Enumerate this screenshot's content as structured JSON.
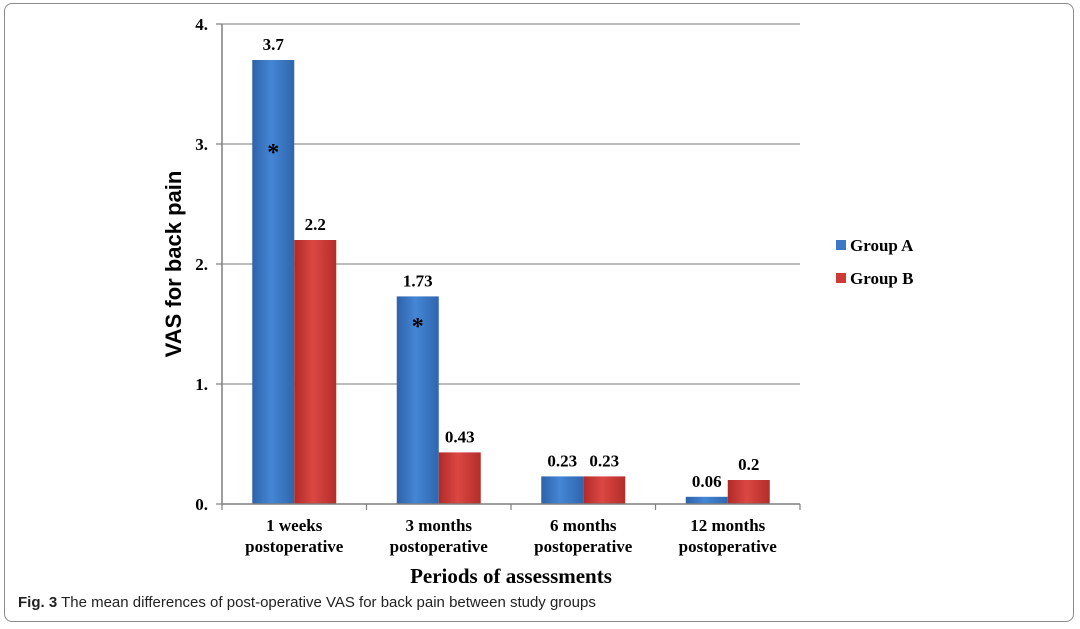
{
  "caption": {
    "label": "Fig. 3",
    "text": "The mean differences of post-operative VAS for back pain between study groups"
  },
  "chart_data": {
    "type": "bar",
    "title": "",
    "xlabel": "Periods of assessments",
    "ylabel": "VAS for back pain",
    "ylim": [
      0,
      4
    ],
    "yticks": [
      "0.",
      "1.",
      "2.",
      "3.",
      "4."
    ],
    "grid": true,
    "legend_position": "right",
    "categories": [
      [
        "1 weeks",
        "postoperative"
      ],
      [
        "3 months",
        "postoperative"
      ],
      [
        "6 months",
        "postoperative"
      ],
      [
        "12 months",
        "postoperative"
      ]
    ],
    "series": [
      {
        "name": "Group A",
        "color": "#3c78c6",
        "values": [
          3.7,
          1.73,
          0.23,
          0.06
        ],
        "labels": [
          "3.7",
          "1.73",
          "0.23",
          "0.06"
        ]
      },
      {
        "name": "Group B",
        "color": "#cf3a36",
        "values": [
          2.2,
          0.43,
          0.23,
          0.2
        ],
        "labels": [
          "2.2",
          "0.43",
          "0.23",
          "0.2"
        ]
      }
    ],
    "annotations": [
      {
        "series": 0,
        "category": 0,
        "text": "*",
        "at_value": 2.95
      },
      {
        "series": 0,
        "category": 1,
        "text": "*",
        "at_value": 1.5
      }
    ]
  }
}
